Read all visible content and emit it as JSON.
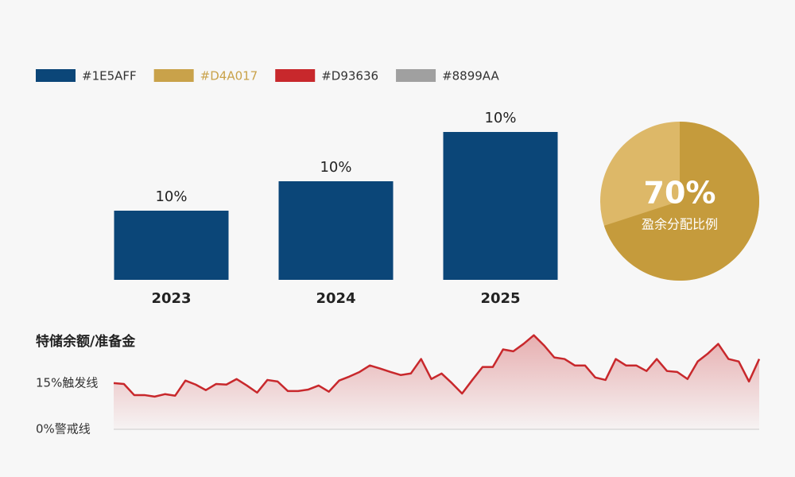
{
  "legend": {
    "items": [
      {
        "label": "#1E5AFF",
        "color": "#0B4678"
      },
      {
        "label": "#D4A017",
        "color": "#C9A24A"
      },
      {
        "label": "#D93636",
        "color": "#C8282C"
      },
      {
        "label": "#8899AA",
        "color": "#A0A0A0"
      }
    ]
  },
  "chart_data": [
    {
      "type": "bar",
      "categories": [
        "2023",
        "2024",
        "2025"
      ],
      "values": [
        87,
        124,
        186
      ],
      "bar_labels": [
        "10%",
        "10%",
        "10%"
      ],
      "color": "#0B4678",
      "ylim": [
        0,
        200
      ]
    },
    {
      "type": "pie",
      "values": [
        70
      ],
      "value_labels": [
        "70%"
      ],
      "subtitle": "盈余分配比例",
      "colors": [
        "#C59B3C",
        "#DDB868"
      ]
    },
    {
      "type": "line",
      "title": "特储余额/准备金",
      "color": "#C8282C",
      "ylim": [
        0,
        33
      ],
      "yticks": [
        {
          "value": 0,
          "label": "0%警戒线"
        },
        {
          "value": 15,
          "label": "15%触发线"
        }
      ],
      "values": [
        15.0,
        14.7,
        11.1,
        11.1,
        10.6,
        11.4,
        10.9,
        15.8,
        14.5,
        12.7,
        14.7,
        14.5,
        16.3,
        14.2,
        11.9,
        16.0,
        15.5,
        12.4,
        12.4,
        12.9,
        14.2,
        12.2,
        15.8,
        17.1,
        18.6,
        20.7,
        19.7,
        18.6,
        17.6,
        18.1,
        22.8,
        16.3,
        18.1,
        15.0,
        11.6,
        16.0,
        20.2,
        20.2,
        25.9,
        25.3,
        27.7,
        30.5,
        27.2,
        23.3,
        22.8,
        20.7,
        20.7,
        16.8,
        16.0,
        22.8,
        20.7,
        20.7,
        18.9,
        22.8,
        18.9,
        18.6,
        16.3,
        22.0,
        24.6,
        27.7,
        22.8,
        22.0,
        15.5,
        22.8
      ]
    }
  ]
}
